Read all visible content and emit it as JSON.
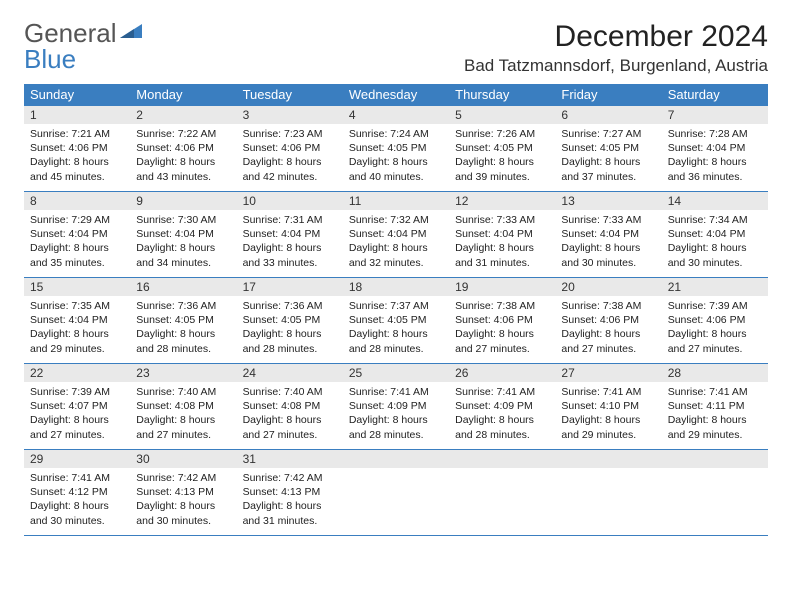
{
  "brand": {
    "part1": "General",
    "part2": "Blue"
  },
  "title": "December 2024",
  "location": "Bad Tatzmannsdorf, Burgenland, Austria",
  "colors": {
    "accent": "#3a7ec0",
    "header_text": "#ffffff",
    "daynum_bg": "#e9e9e9",
    "body_bg": "#ffffff",
    "text": "#222222",
    "logo_gray": "#555555"
  },
  "typography": {
    "title_fontsize": 30,
    "location_fontsize": 17,
    "dayheader_fontsize": 13,
    "body_fontsize": 10.5
  },
  "weekdays": [
    "Sunday",
    "Monday",
    "Tuesday",
    "Wednesday",
    "Thursday",
    "Friday",
    "Saturday"
  ],
  "weeks": [
    [
      {
        "n": "1",
        "sr": "Sunrise: 7:21 AM",
        "ss": "Sunset: 4:06 PM",
        "dl": "Daylight: 8 hours and 45 minutes."
      },
      {
        "n": "2",
        "sr": "Sunrise: 7:22 AM",
        "ss": "Sunset: 4:06 PM",
        "dl": "Daylight: 8 hours and 43 minutes."
      },
      {
        "n": "3",
        "sr": "Sunrise: 7:23 AM",
        "ss": "Sunset: 4:06 PM",
        "dl": "Daylight: 8 hours and 42 minutes."
      },
      {
        "n": "4",
        "sr": "Sunrise: 7:24 AM",
        "ss": "Sunset: 4:05 PM",
        "dl": "Daylight: 8 hours and 40 minutes."
      },
      {
        "n": "5",
        "sr": "Sunrise: 7:26 AM",
        "ss": "Sunset: 4:05 PM",
        "dl": "Daylight: 8 hours and 39 minutes."
      },
      {
        "n": "6",
        "sr": "Sunrise: 7:27 AM",
        "ss": "Sunset: 4:05 PM",
        "dl": "Daylight: 8 hours and 37 minutes."
      },
      {
        "n": "7",
        "sr": "Sunrise: 7:28 AM",
        "ss": "Sunset: 4:04 PM",
        "dl": "Daylight: 8 hours and 36 minutes."
      }
    ],
    [
      {
        "n": "8",
        "sr": "Sunrise: 7:29 AM",
        "ss": "Sunset: 4:04 PM",
        "dl": "Daylight: 8 hours and 35 minutes."
      },
      {
        "n": "9",
        "sr": "Sunrise: 7:30 AM",
        "ss": "Sunset: 4:04 PM",
        "dl": "Daylight: 8 hours and 34 minutes."
      },
      {
        "n": "10",
        "sr": "Sunrise: 7:31 AM",
        "ss": "Sunset: 4:04 PM",
        "dl": "Daylight: 8 hours and 33 minutes."
      },
      {
        "n": "11",
        "sr": "Sunrise: 7:32 AM",
        "ss": "Sunset: 4:04 PM",
        "dl": "Daylight: 8 hours and 32 minutes."
      },
      {
        "n": "12",
        "sr": "Sunrise: 7:33 AM",
        "ss": "Sunset: 4:04 PM",
        "dl": "Daylight: 8 hours and 31 minutes."
      },
      {
        "n": "13",
        "sr": "Sunrise: 7:33 AM",
        "ss": "Sunset: 4:04 PM",
        "dl": "Daylight: 8 hours and 30 minutes."
      },
      {
        "n": "14",
        "sr": "Sunrise: 7:34 AM",
        "ss": "Sunset: 4:04 PM",
        "dl": "Daylight: 8 hours and 30 minutes."
      }
    ],
    [
      {
        "n": "15",
        "sr": "Sunrise: 7:35 AM",
        "ss": "Sunset: 4:04 PM",
        "dl": "Daylight: 8 hours and 29 minutes."
      },
      {
        "n": "16",
        "sr": "Sunrise: 7:36 AM",
        "ss": "Sunset: 4:05 PM",
        "dl": "Daylight: 8 hours and 28 minutes."
      },
      {
        "n": "17",
        "sr": "Sunrise: 7:36 AM",
        "ss": "Sunset: 4:05 PM",
        "dl": "Daylight: 8 hours and 28 minutes."
      },
      {
        "n": "18",
        "sr": "Sunrise: 7:37 AM",
        "ss": "Sunset: 4:05 PM",
        "dl": "Daylight: 8 hours and 28 minutes."
      },
      {
        "n": "19",
        "sr": "Sunrise: 7:38 AM",
        "ss": "Sunset: 4:06 PM",
        "dl": "Daylight: 8 hours and 27 minutes."
      },
      {
        "n": "20",
        "sr": "Sunrise: 7:38 AM",
        "ss": "Sunset: 4:06 PM",
        "dl": "Daylight: 8 hours and 27 minutes."
      },
      {
        "n": "21",
        "sr": "Sunrise: 7:39 AM",
        "ss": "Sunset: 4:06 PM",
        "dl": "Daylight: 8 hours and 27 minutes."
      }
    ],
    [
      {
        "n": "22",
        "sr": "Sunrise: 7:39 AM",
        "ss": "Sunset: 4:07 PM",
        "dl": "Daylight: 8 hours and 27 minutes."
      },
      {
        "n": "23",
        "sr": "Sunrise: 7:40 AM",
        "ss": "Sunset: 4:08 PM",
        "dl": "Daylight: 8 hours and 27 minutes."
      },
      {
        "n": "24",
        "sr": "Sunrise: 7:40 AM",
        "ss": "Sunset: 4:08 PM",
        "dl": "Daylight: 8 hours and 27 minutes."
      },
      {
        "n": "25",
        "sr": "Sunrise: 7:41 AM",
        "ss": "Sunset: 4:09 PM",
        "dl": "Daylight: 8 hours and 28 minutes."
      },
      {
        "n": "26",
        "sr": "Sunrise: 7:41 AM",
        "ss": "Sunset: 4:09 PM",
        "dl": "Daylight: 8 hours and 28 minutes."
      },
      {
        "n": "27",
        "sr": "Sunrise: 7:41 AM",
        "ss": "Sunset: 4:10 PM",
        "dl": "Daylight: 8 hours and 29 minutes."
      },
      {
        "n": "28",
        "sr": "Sunrise: 7:41 AM",
        "ss": "Sunset: 4:11 PM",
        "dl": "Daylight: 8 hours and 29 minutes."
      }
    ],
    [
      {
        "n": "29",
        "sr": "Sunrise: 7:41 AM",
        "ss": "Sunset: 4:12 PM",
        "dl": "Daylight: 8 hours and 30 minutes."
      },
      {
        "n": "30",
        "sr": "Sunrise: 7:42 AM",
        "ss": "Sunset: 4:13 PM",
        "dl": "Daylight: 8 hours and 30 minutes."
      },
      {
        "n": "31",
        "sr": "Sunrise: 7:42 AM",
        "ss": "Sunset: 4:13 PM",
        "dl": "Daylight: 8 hours and 31 minutes."
      },
      {
        "n": "",
        "sr": "",
        "ss": "",
        "dl": ""
      },
      {
        "n": "",
        "sr": "",
        "ss": "",
        "dl": ""
      },
      {
        "n": "",
        "sr": "",
        "ss": "",
        "dl": ""
      },
      {
        "n": "",
        "sr": "",
        "ss": "",
        "dl": ""
      }
    ]
  ]
}
